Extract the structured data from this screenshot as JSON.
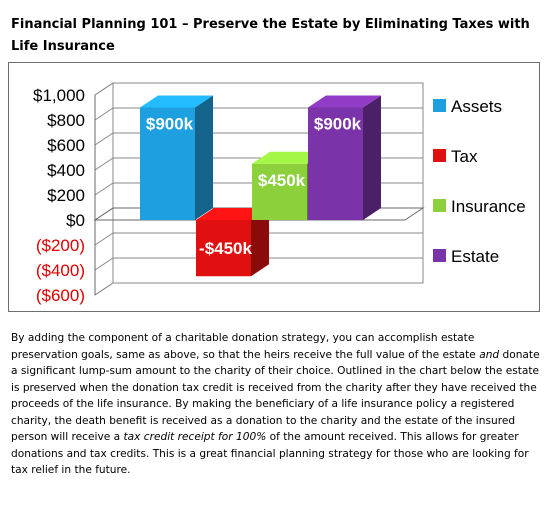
{
  "title": "Financial Planning 101 – Preserve the Estate by Eliminating Taxes with Life Insurance",
  "chart_data": {
    "type": "bar",
    "title": "",
    "xlabel": "",
    "ylabel": "",
    "categories": [
      "Assets",
      "Tax",
      "Insurance",
      "Estate"
    ],
    "values": [
      900,
      -450,
      450,
      900
    ],
    "data_labels": [
      "$900k",
      "-$450k",
      "$450k",
      "$900k"
    ],
    "ylim": [
      -600,
      1000
    ],
    "y_ticks": [
      1000,
      800,
      600,
      400,
      200,
      0,
      -200,
      -400,
      -600
    ],
    "y_tick_labels": [
      "$1,000",
      "$800",
      "$600",
      "$400",
      "$200",
      "$0",
      "($200)",
      "($400)",
      "($600)"
    ],
    "negative_tick_color": "#e00000",
    "grid": true,
    "three_d": true,
    "legend_position": "right",
    "legend": [
      {
        "name": "Assets",
        "color": "#1e9fe0"
      },
      {
        "name": "Tax",
        "color": "#e01010"
      },
      {
        "name": "Insurance",
        "color": "#8cd13c"
      },
      {
        "name": "Estate",
        "color": "#7a33a8"
      }
    ]
  },
  "paragraph": {
    "p1": "By adding the component of a charitable donation strategy, you can accomplish estate preservation goals, same as above, so that the heirs receive the full value of the estate ",
    "em1": "and",
    "p2": " donate a significant lump-sum amount to the charity of their choice. Outlined in the chart below the estate is preserved when the donation tax credit is received from the charity after they have received the proceeds of the life insurance. By making the beneficiary of a life insurance policy a registered charity, the death benefit is received as a donation to the charity and the estate of the insured person will receive a ",
    "em2": "tax credit receipt for 100%",
    "p3": " of the amount received. This allows for greater donations and tax credits. This is a great financial planning strategy for those who are looking for tax relief in the future."
  }
}
